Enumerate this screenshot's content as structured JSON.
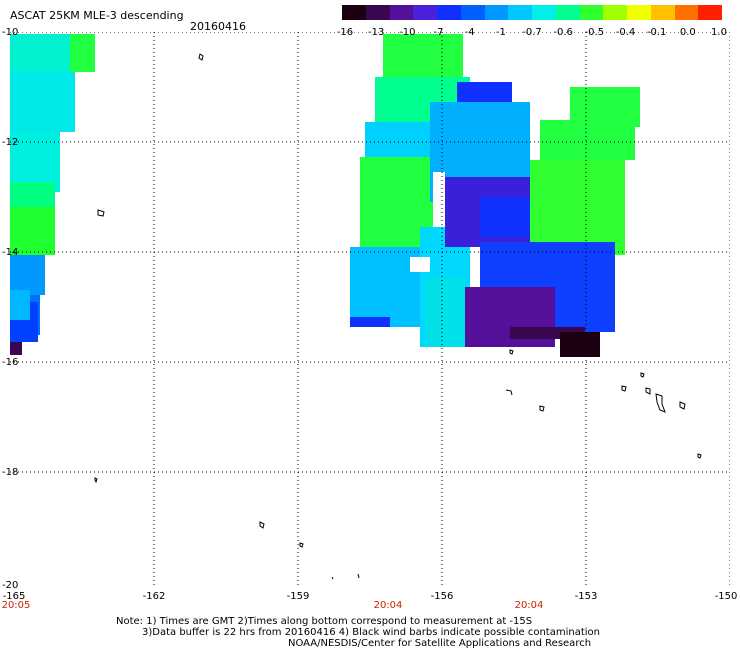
{
  "header": {
    "title": "ASCAT 25KM MLE-3 descending",
    "date": "20160416"
  },
  "colorbar": {
    "labels": [
      "-16",
      "-13",
      "-10",
      "-7",
      "-4",
      "-1",
      "-0.7",
      "-0.6",
      "-0.5",
      "-0.4",
      "-0.1",
      "0.0",
      "1.0"
    ],
    "colors": [
      "#1a0010",
      "#3a0650",
      "#54109a",
      "#4a20d8",
      "#1030ff",
      "#0060ff",
      "#0098ff",
      "#00c8ff",
      "#00f0e8",
      "#00ff90",
      "#30ff30",
      "#a0ff00",
      "#f0ff00",
      "#ffc000",
      "#ff7000",
      "#ff2000"
    ]
  },
  "axes": {
    "y_labels": [
      "-10",
      "-12",
      "-14",
      "-16",
      "-18",
      "-20"
    ],
    "x_labels": [
      "-165",
      "-162",
      "-159",
      "-156",
      "-153",
      "-150"
    ]
  },
  "times": [
    "20:05",
    "20:04",
    "20:04"
  ],
  "note": {
    "line1": "Note: 1) Times are GMT 2)Times along bottom correspond to measurement at -15S",
    "line2": "3)Data buffer is 22 hrs from 20160416 4) Black wind barbs indicate possible contamination",
    "line3": "NOAA/NESDIS/Center for Satellite Applications and Research"
  }
}
